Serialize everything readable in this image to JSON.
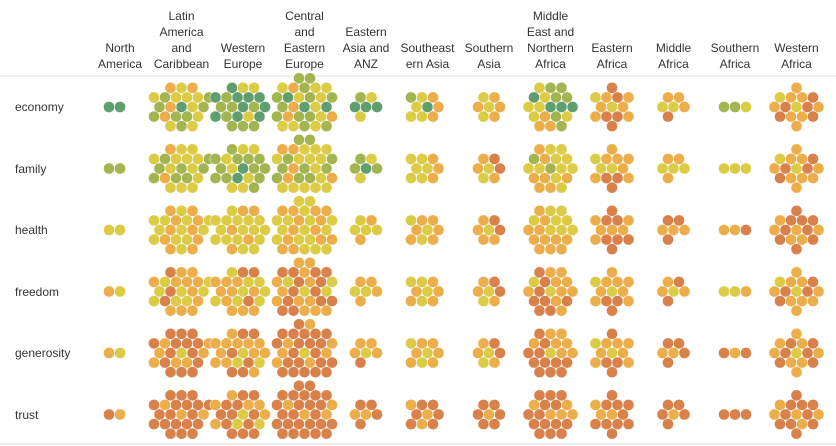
{
  "chart_data": {
    "type": "bubble-grid",
    "columns": [
      "North America",
      "Latin America and Caribbean",
      "Western Europe",
      "Central and Eastern Europe",
      "Eastern Asia and ANZ",
      "Southeastern Asia",
      "Southern Asia",
      "Middle East and Northern Africa",
      "Eastern Africa",
      "Middle Africa",
      "Southern Africa",
      "Western Africa"
    ],
    "rows": [
      "economy",
      "family",
      "health",
      "freedom",
      "generosity",
      "trust"
    ],
    "color_levels": [
      "#5f9e6e",
      "#a3b550",
      "#dccb45",
      "#ecae4a",
      "#d9814a"
    ],
    "counts": [
      [
        [
          2,
          0,
          0,
          0,
          0
        ],
        [
          1,
          8,
          9,
          4,
          0
        ],
        [
          10,
          8,
          3,
          0,
          0
        ],
        [
          3,
          12,
          10,
          4,
          0
        ],
        [
          3,
          1,
          2,
          0,
          0
        ],
        [
          1,
          1,
          4,
          3,
          0
        ],
        [
          0,
          0,
          3,
          4,
          0
        ],
        [
          4,
          6,
          6,
          3,
          0
        ],
        [
          0,
          0,
          2,
          6,
          5
        ],
        [
          0,
          0,
          2,
          3,
          1
        ],
        [
          0,
          2,
          1,
          0,
          0
        ],
        [
          0,
          0,
          2,
          8,
          5
        ]
      ],
      [
        [
          0,
          2,
          0,
          0,
          0
        ],
        [
          0,
          8,
          12,
          2,
          0
        ],
        [
          2,
          12,
          7,
          0,
          0
        ],
        [
          0,
          10,
          14,
          5,
          0
        ],
        [
          1,
          3,
          2,
          0,
          0
        ],
        [
          0,
          0,
          6,
          3,
          0
        ],
        [
          0,
          0,
          2,
          3,
          2
        ],
        [
          0,
          2,
          10,
          7,
          0
        ],
        [
          0,
          0,
          3,
          7,
          3
        ],
        [
          0,
          0,
          3,
          3,
          0
        ],
        [
          0,
          0,
          3,
          0,
          0
        ],
        [
          0,
          0,
          2,
          9,
          4
        ]
      ],
      [
        [
          0,
          0,
          2,
          0,
          0
        ],
        [
          0,
          0,
          12,
          10,
          0
        ],
        [
          0,
          0,
          16,
          5,
          0
        ],
        [
          0,
          0,
          16,
          13,
          0
        ],
        [
          0,
          0,
          4,
          2,
          0
        ],
        [
          0,
          0,
          3,
          6,
          0
        ],
        [
          0,
          0,
          1,
          4,
          2
        ],
        [
          0,
          0,
          8,
          11,
          0
        ],
        [
          0,
          0,
          0,
          6,
          7
        ],
        [
          0,
          0,
          0,
          3,
          3
        ],
        [
          0,
          0,
          0,
          2,
          1
        ],
        [
          0,
          0,
          0,
          6,
          9
        ]
      ],
      [
        [
          0,
          0,
          1,
          1,
          0
        ],
        [
          0,
          0,
          8,
          11,
          3
        ],
        [
          0,
          0,
          8,
          10,
          3
        ],
        [
          0,
          0,
          4,
          12,
          13
        ],
        [
          0,
          0,
          2,
          4,
          0
        ],
        [
          0,
          0,
          4,
          5,
          0
        ],
        [
          0,
          0,
          2,
          3,
          2
        ],
        [
          0,
          0,
          2,
          9,
          8
        ],
        [
          0,
          0,
          2,
          8,
          3
        ],
        [
          0,
          0,
          1,
          3,
          2
        ],
        [
          0,
          0,
          2,
          1,
          0
        ],
        [
          0,
          0,
          2,
          9,
          4
        ]
      ],
      [
        [
          0,
          0,
          1,
          1,
          0
        ],
        [
          0,
          0,
          1,
          7,
          14
        ],
        [
          0,
          0,
          3,
          12,
          6
        ],
        [
          0,
          0,
          1,
          7,
          21
        ],
        [
          0,
          0,
          1,
          4,
          1
        ],
        [
          0,
          0,
          3,
          6,
          0
        ],
        [
          0,
          0,
          2,
          3,
          2
        ],
        [
          0,
          0,
          1,
          7,
          11
        ],
        [
          0,
          0,
          2,
          7,
          4
        ],
        [
          0,
          0,
          0,
          2,
          4
        ],
        [
          0,
          0,
          0,
          1,
          2
        ],
        [
          0,
          0,
          1,
          8,
          6
        ]
      ],
      [
        [
          0,
          0,
          0,
          1,
          1
        ],
        [
          0,
          0,
          0,
          3,
          19
        ],
        [
          0,
          0,
          3,
          6,
          12
        ],
        [
          0,
          0,
          0,
          4,
          25
        ],
        [
          0,
          0,
          0,
          2,
          4
        ],
        [
          0,
          0,
          0,
          3,
          6
        ],
        [
          0,
          0,
          0,
          1,
          6
        ],
        [
          0,
          0,
          0,
          5,
          14
        ],
        [
          0,
          0,
          0,
          3,
          10
        ],
        [
          0,
          0,
          0,
          1,
          5
        ],
        [
          0,
          0,
          0,
          0,
          3
        ],
        [
          0,
          0,
          0,
          5,
          10
        ]
      ]
    ]
  }
}
